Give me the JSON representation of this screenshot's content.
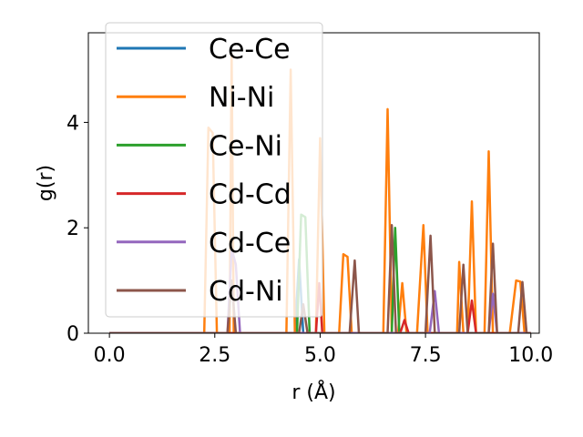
{
  "chart_data": {
    "type": "line",
    "xlabel": "r (Å)",
    "ylabel": "g(r)",
    "xlim": [
      -0.5,
      10.2
    ],
    "ylim": [
      0,
      5.7
    ],
    "xticks": [
      0.0,
      2.5,
      5.0,
      7.5,
      10.0
    ],
    "xtick_labels": [
      "0.0",
      "2.5",
      "5.0",
      "7.5",
      "10.0"
    ],
    "yticks": [
      0,
      2,
      4
    ],
    "ytick_labels": [
      "0",
      "2",
      "4"
    ],
    "grid": false,
    "legend_position": "upper-left",
    "series": [
      {
        "name": "Ce-Ce",
        "color": "#1f77b4",
        "points": [
          [
            0,
            0
          ],
          [
            4.4,
            0
          ],
          [
            4.5,
            1.4
          ],
          [
            4.6,
            0
          ],
          [
            10,
            0
          ]
        ]
      },
      {
        "name": "Ni-Ni",
        "color": "#ff7f0e",
        "points": [
          [
            0,
            0
          ],
          [
            2.25,
            0
          ],
          [
            2.35,
            3.9
          ],
          [
            2.45,
            3.8
          ],
          [
            2.55,
            0
          ],
          [
            2.85,
            0
          ],
          [
            2.9,
            5.3
          ],
          [
            2.95,
            0
          ],
          [
            4.2,
            0
          ],
          [
            4.3,
            5.0
          ],
          [
            4.4,
            0
          ],
          [
            4.9,
            0
          ],
          [
            5.0,
            3.7
          ],
          [
            5.1,
            0
          ],
          [
            5.45,
            0
          ],
          [
            5.55,
            1.5
          ],
          [
            5.65,
            1.45
          ],
          [
            5.75,
            0
          ],
          [
            6.5,
            0
          ],
          [
            6.6,
            4.25
          ],
          [
            6.7,
            0
          ],
          [
            6.85,
            0
          ],
          [
            6.95,
            0.95
          ],
          [
            7.05,
            0
          ],
          [
            7.3,
            0
          ],
          [
            7.45,
            2.05
          ],
          [
            7.55,
            0
          ],
          [
            8.25,
            0
          ],
          [
            8.3,
            1.35
          ],
          [
            8.4,
            0
          ],
          [
            8.5,
            0
          ],
          [
            8.6,
            2.5
          ],
          [
            8.7,
            0
          ],
          [
            8.9,
            0
          ],
          [
            9.0,
            3.45
          ],
          [
            9.1,
            0
          ],
          [
            9.5,
            0
          ],
          [
            9.65,
            1.0
          ],
          [
            9.75,
            0.98
          ],
          [
            9.85,
            0
          ],
          [
            10,
            0
          ]
        ]
      },
      {
        "name": "Ce-Ni",
        "color": "#2ca02c",
        "points": [
          [
            0,
            0
          ],
          [
            4.45,
            0
          ],
          [
            4.55,
            2.25
          ],
          [
            4.65,
            2.2
          ],
          [
            4.75,
            0
          ],
          [
            6.7,
            0
          ],
          [
            6.78,
            2.0
          ],
          [
            6.88,
            0
          ],
          [
            10,
            0
          ]
        ]
      },
      {
        "name": "Cd-Cd",
        "color": "#d62728",
        "points": [
          [
            0,
            0
          ],
          [
            4.9,
            0
          ],
          [
            4.98,
            0.95
          ],
          [
            5.05,
            0
          ],
          [
            6.9,
            0
          ],
          [
            7.0,
            0.25
          ],
          [
            7.1,
            0
          ],
          [
            8.5,
            0
          ],
          [
            8.6,
            0.62
          ],
          [
            8.7,
            0
          ],
          [
            10,
            0
          ]
        ]
      },
      {
        "name": "Cd-Ce",
        "color": "#9467bd",
        "points": [
          [
            0,
            0
          ],
          [
            2.8,
            0
          ],
          [
            2.9,
            1.6
          ],
          [
            3.0,
            1.3
          ],
          [
            3.1,
            0
          ],
          [
            7.6,
            0
          ],
          [
            7.72,
            0.8
          ],
          [
            7.82,
            0
          ],
          [
            9.0,
            0
          ],
          [
            9.1,
            0.75
          ],
          [
            9.2,
            0
          ],
          [
            10,
            0
          ]
        ]
      },
      {
        "name": "Cd-Ni",
        "color": "#8c564b",
        "points": [
          [
            0,
            0
          ],
          [
            2.8,
            0
          ],
          [
            2.9,
            1.0
          ],
          [
            3.0,
            0
          ],
          [
            4.5,
            0
          ],
          [
            4.6,
            0.55
          ],
          [
            4.7,
            0
          ],
          [
            5.7,
            0
          ],
          [
            5.82,
            1.38
          ],
          [
            5.92,
            0
          ],
          [
            6.6,
            0
          ],
          [
            6.7,
            2.05
          ],
          [
            6.8,
            0
          ],
          [
            7.5,
            0
          ],
          [
            7.62,
            1.85
          ],
          [
            7.72,
            0
          ],
          [
            8.3,
            0
          ],
          [
            8.4,
            1.3
          ],
          [
            8.5,
            0
          ],
          [
            9.0,
            0
          ],
          [
            9.1,
            1.7
          ],
          [
            9.2,
            0
          ],
          [
            9.7,
            0
          ],
          [
            9.8,
            0.97
          ],
          [
            9.9,
            0
          ],
          [
            10,
            0
          ]
        ]
      }
    ]
  }
}
